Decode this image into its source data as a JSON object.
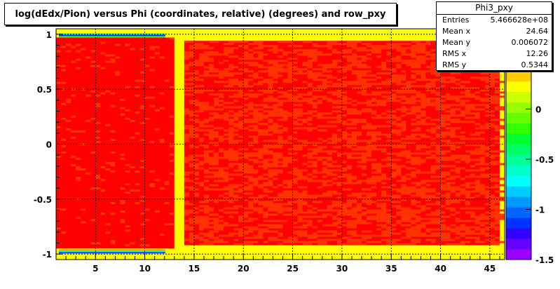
{
  "chart_data": {
    "type": "heatmap",
    "title": "log(dEdx/Pion) versus Phi (coordinates, relative) (degrees) and row_pxy",
    "xlabel": "",
    "ylabel": "",
    "xlim": [
      1,
      46.5
    ],
    "ylim": [
      -1.05,
      1.05
    ],
    "x_ticks": [
      5,
      10,
      15,
      20,
      25,
      30,
      35,
      40,
      45
    ],
    "y_ticks": [
      1,
      0.5,
      0,
      -0.5,
      -1
    ],
    "y_tick_labels": [
      "1",
      "0.5",
      "0",
      "-0.5",
      "-1"
    ],
    "colorbar": {
      "range": [
        -1.5,
        0.8
      ],
      "tick_labels": [
        "0",
        "-0.5",
        "-1",
        "-1.5"
      ],
      "tick_values": [
        0,
        -0.5,
        -1,
        -1.5
      ],
      "colors": [
        "#9900ff",
        "#6600ff",
        "#3300ff",
        "#0033ff",
        "#0066ff",
        "#0099ff",
        "#00ccff",
        "#00ffff",
        "#00ffcc",
        "#00ff99",
        "#00ff66",
        "#00ff33",
        "#33ff00",
        "#66ff00",
        "#99ff00",
        "#ccff00",
        "#ffff00",
        "#ffcc00",
        "#ff9900",
        "#ff6600",
        "#ff3300",
        "#ff0000"
      ]
    },
    "regions": [
      {
        "x": [
          1,
          13
        ],
        "y": [
          -0.95,
          0.97
        ],
        "level": "red-dominant"
      },
      {
        "x": [
          13,
          14
        ],
        "y": [
          -1.05,
          1.05
        ],
        "level": "yellow-gap"
      },
      {
        "x": [
          14,
          46
        ],
        "y": [
          -0.92,
          0.94
        ],
        "level": "red/orange mix"
      }
    ],
    "background_color": "#ffff00",
    "stats": {
      "name": "Phi3_pxy",
      "rows": [
        {
          "label": "Entries",
          "value": "5.466628e+08"
        },
        {
          "label": "Mean x",
          "value": "24.64"
        },
        {
          "label": "Mean y",
          "value": "0.006072"
        },
        {
          "label": "RMS x",
          "value": "12.26"
        },
        {
          "label": "RMS y",
          "value": "0.5344"
        }
      ]
    }
  }
}
